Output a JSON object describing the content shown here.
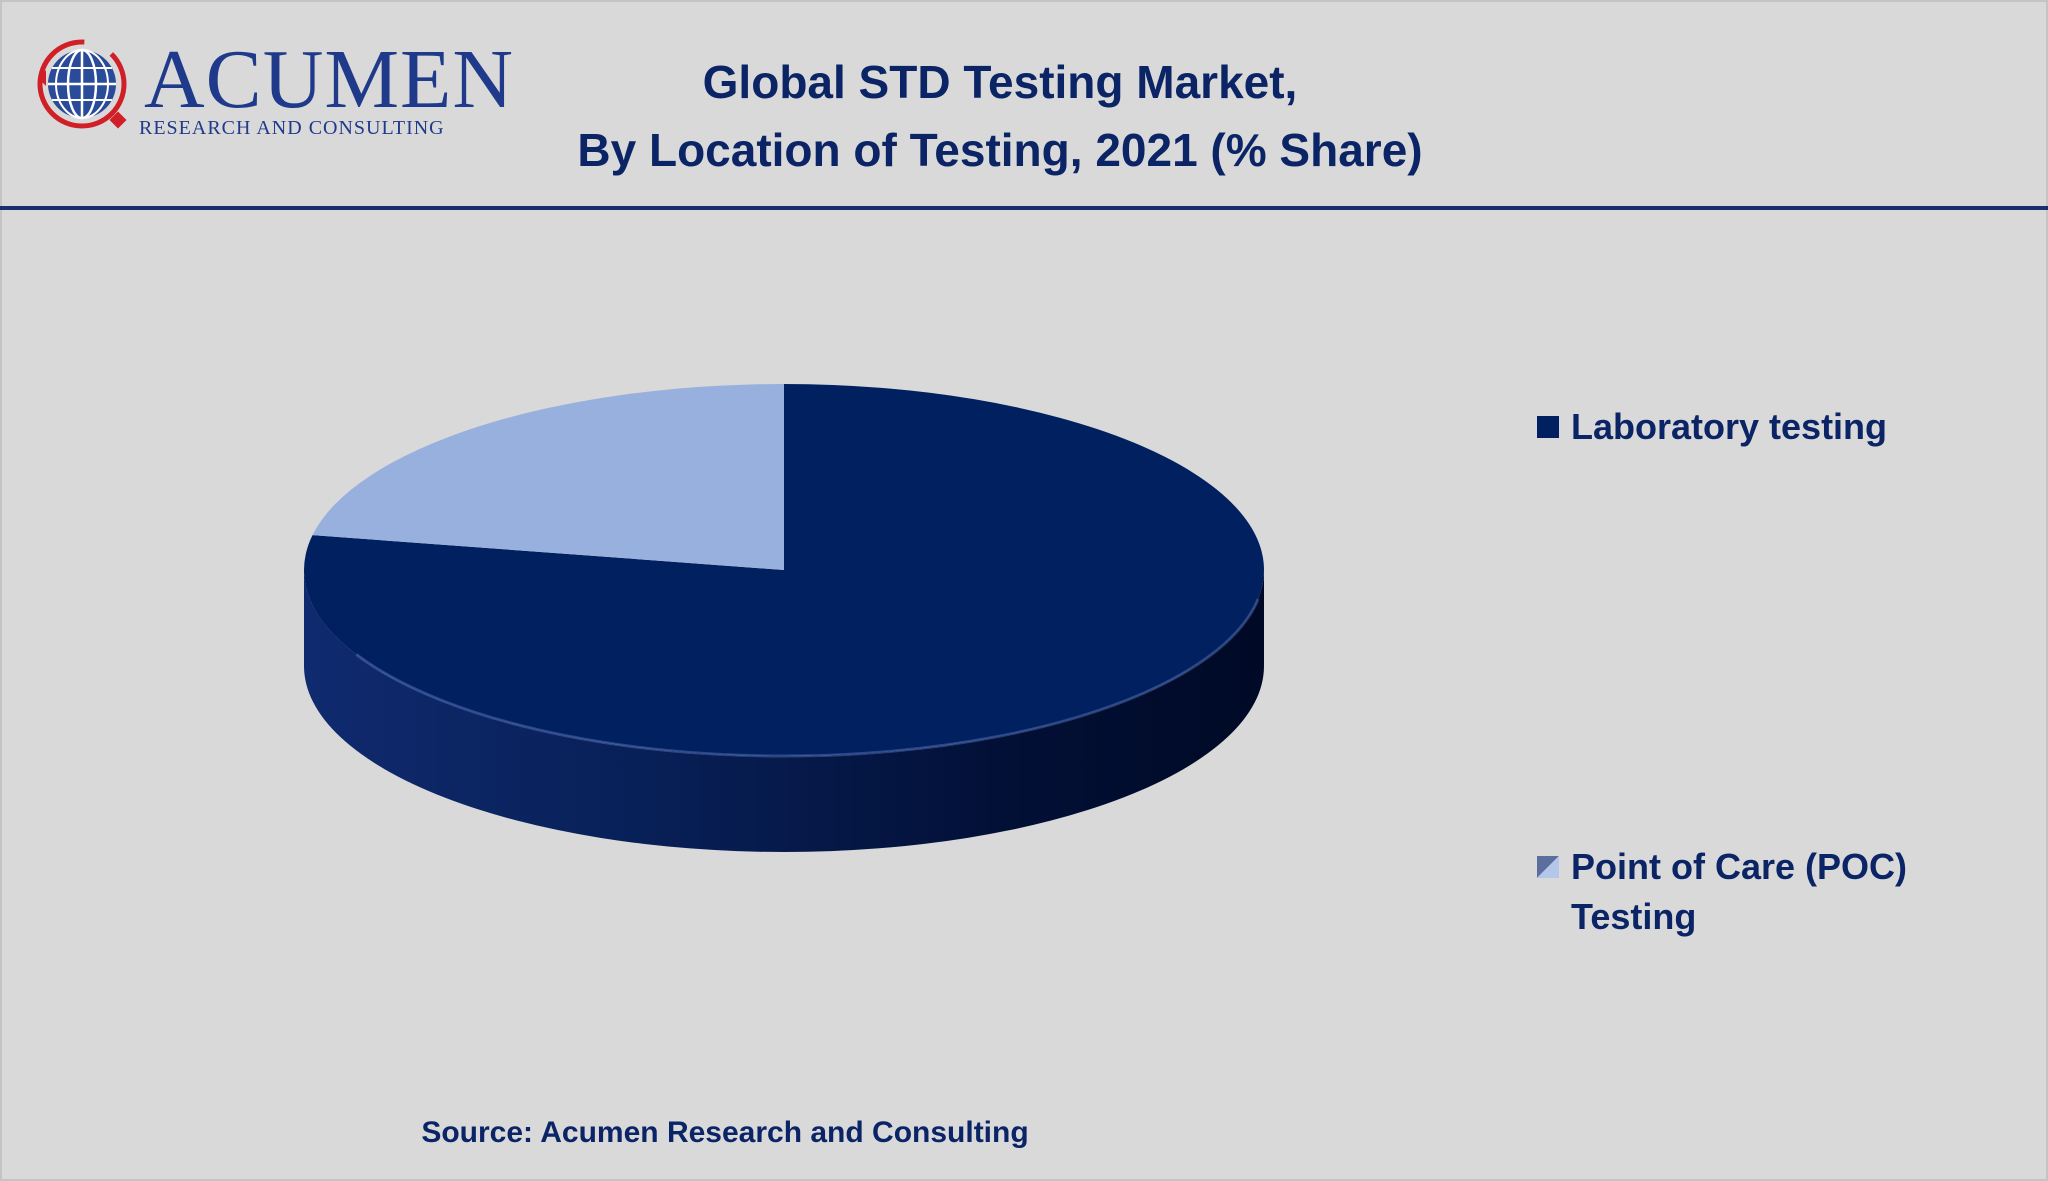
{
  "brand": {
    "name": "ACUMEN",
    "tagline": "RESEARCH AND CONSULTING"
  },
  "chart_data": {
    "type": "pie",
    "title_line1": "Global STD Testing Market,",
    "title_line2": "By Location of Testing, 2021 (% Share)",
    "slices": [
      {
        "label": "Laboratory testing",
        "value": 78,
        "color": "#012060"
      },
      {
        "label": "Point of Care (POC) Testing",
        "value": 22,
        "color": "#98b0de"
      }
    ],
    "legend_position": "right",
    "style": "3d"
  },
  "source": "Source: Acumen Research and Consulting",
  "colors": {
    "background": "#d9d9d9",
    "title": "#0b2466",
    "brand_red": "#d01f26",
    "brand_blue": "#1f3a8a"
  }
}
